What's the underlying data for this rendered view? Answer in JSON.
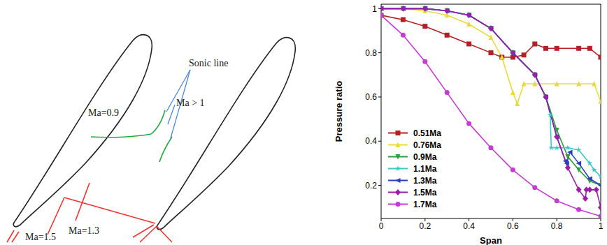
{
  "chart_data": {
    "type": "line",
    "x_label": "Span",
    "y_label": "Pressure ratio",
    "xlim": [
      0,
      1
    ],
    "ylim": [
      0.05,
      1.02
    ],
    "xticks": [
      0,
      0.2,
      0.4,
      0.6,
      0.8,
      1
    ],
    "yticks": [
      0.2,
      0.4,
      0.6,
      0.8,
      1
    ],
    "legend": "lower left",
    "series": [
      {
        "name": "0.51Ma",
        "color": "#b22222",
        "marker": "square",
        "x": [
          0,
          0.1,
          0.2,
          0.3,
          0.4,
          0.5,
          0.55,
          0.6,
          0.65,
          0.7,
          0.75,
          0.8,
          0.9,
          0.95,
          1
        ],
        "values": [
          0.97,
          0.95,
          0.92,
          0.88,
          0.84,
          0.8,
          0.78,
          0.78,
          0.79,
          0.84,
          0.82,
          0.82,
          0.82,
          0.82,
          0.78
        ]
      },
      {
        "name": "0.76Ma",
        "color": "#e8dc3a",
        "marker": "triangle",
        "x": [
          0,
          0.1,
          0.2,
          0.3,
          0.4,
          0.5,
          0.55,
          0.6,
          0.62,
          0.65,
          0.7,
          0.8,
          0.9,
          0.97,
          1
        ],
        "values": [
          1,
          1,
          0.99,
          0.97,
          0.93,
          0.87,
          0.78,
          0.62,
          0.57,
          0.66,
          0.66,
          0.66,
          0.66,
          0.66,
          0.58
        ]
      },
      {
        "name": "0.9Ma",
        "color": "#2e9e3e",
        "marker": "triangle-down",
        "x": [
          0,
          0.1,
          0.2,
          0.3,
          0.4,
          0.5,
          0.6,
          0.7,
          0.75,
          0.8,
          0.85,
          0.9,
          0.95,
          1
        ],
        "values": [
          1,
          1,
          1,
          0.99,
          0.97,
          0.91,
          0.8,
          0.7,
          0.6,
          0.45,
          0.33,
          0.27,
          0.22,
          0.2
        ]
      },
      {
        "name": "1.1Ma",
        "color": "#3cc8c8",
        "marker": "star",
        "x": [
          0,
          0.1,
          0.2,
          0.3,
          0.4,
          0.5,
          0.6,
          0.7,
          0.75,
          0.77,
          0.775,
          0.8,
          0.85,
          0.9,
          0.95,
          0.97,
          1
        ],
        "values": [
          1,
          1,
          1,
          0.99,
          0.97,
          0.91,
          0.8,
          0.7,
          0.6,
          0.52,
          0.37,
          0.37,
          0.37,
          0.36,
          0.3,
          0.27,
          0.24
        ]
      },
      {
        "name": "1.3Ma",
        "color": "#2a3fbf",
        "marker": "triangle-left",
        "x": [
          0,
          0.1,
          0.2,
          0.3,
          0.4,
          0.5,
          0.6,
          0.7,
          0.75,
          0.8,
          0.84,
          0.845,
          0.86,
          0.9,
          0.95,
          1
        ],
        "values": [
          1,
          1,
          1,
          0.99,
          0.97,
          0.91,
          0.8,
          0.7,
          0.6,
          0.42,
          0.31,
          0.3,
          0.35,
          0.3,
          0.23,
          0.2
        ]
      },
      {
        "name": "1.5Ma",
        "color": "#9a1fa6",
        "marker": "diamond",
        "x": [
          0,
          0.1,
          0.2,
          0.3,
          0.4,
          0.5,
          0.6,
          0.7,
          0.75,
          0.8,
          0.85,
          0.9,
          0.93,
          0.935,
          0.95,
          0.98,
          1
        ],
        "values": [
          1,
          1,
          1,
          0.99,
          0.97,
          0.91,
          0.8,
          0.7,
          0.6,
          0.42,
          0.28,
          0.18,
          0.14,
          0.18,
          0.18,
          0.18,
          0.1
        ]
      },
      {
        "name": "1.7Ma",
        "color": "#c43cd0",
        "marker": "circle",
        "x": [
          0,
          0.1,
          0.2,
          0.3,
          0.4,
          0.5,
          0.6,
          0.7,
          0.8,
          0.9,
          1
        ],
        "values": [
          0.97,
          0.88,
          0.76,
          0.62,
          0.48,
          0.37,
          0.27,
          0.19,
          0.13,
          0.09,
          0.06
        ]
      }
    ]
  },
  "diagram": {
    "labels": {
      "sonic_line": "Sonic line",
      "supersonic": "Ma > 1",
      "subsonic": "Ma=0.9",
      "shock_a": "Ma=1.5",
      "shock_b": "Ma=1.3"
    }
  }
}
